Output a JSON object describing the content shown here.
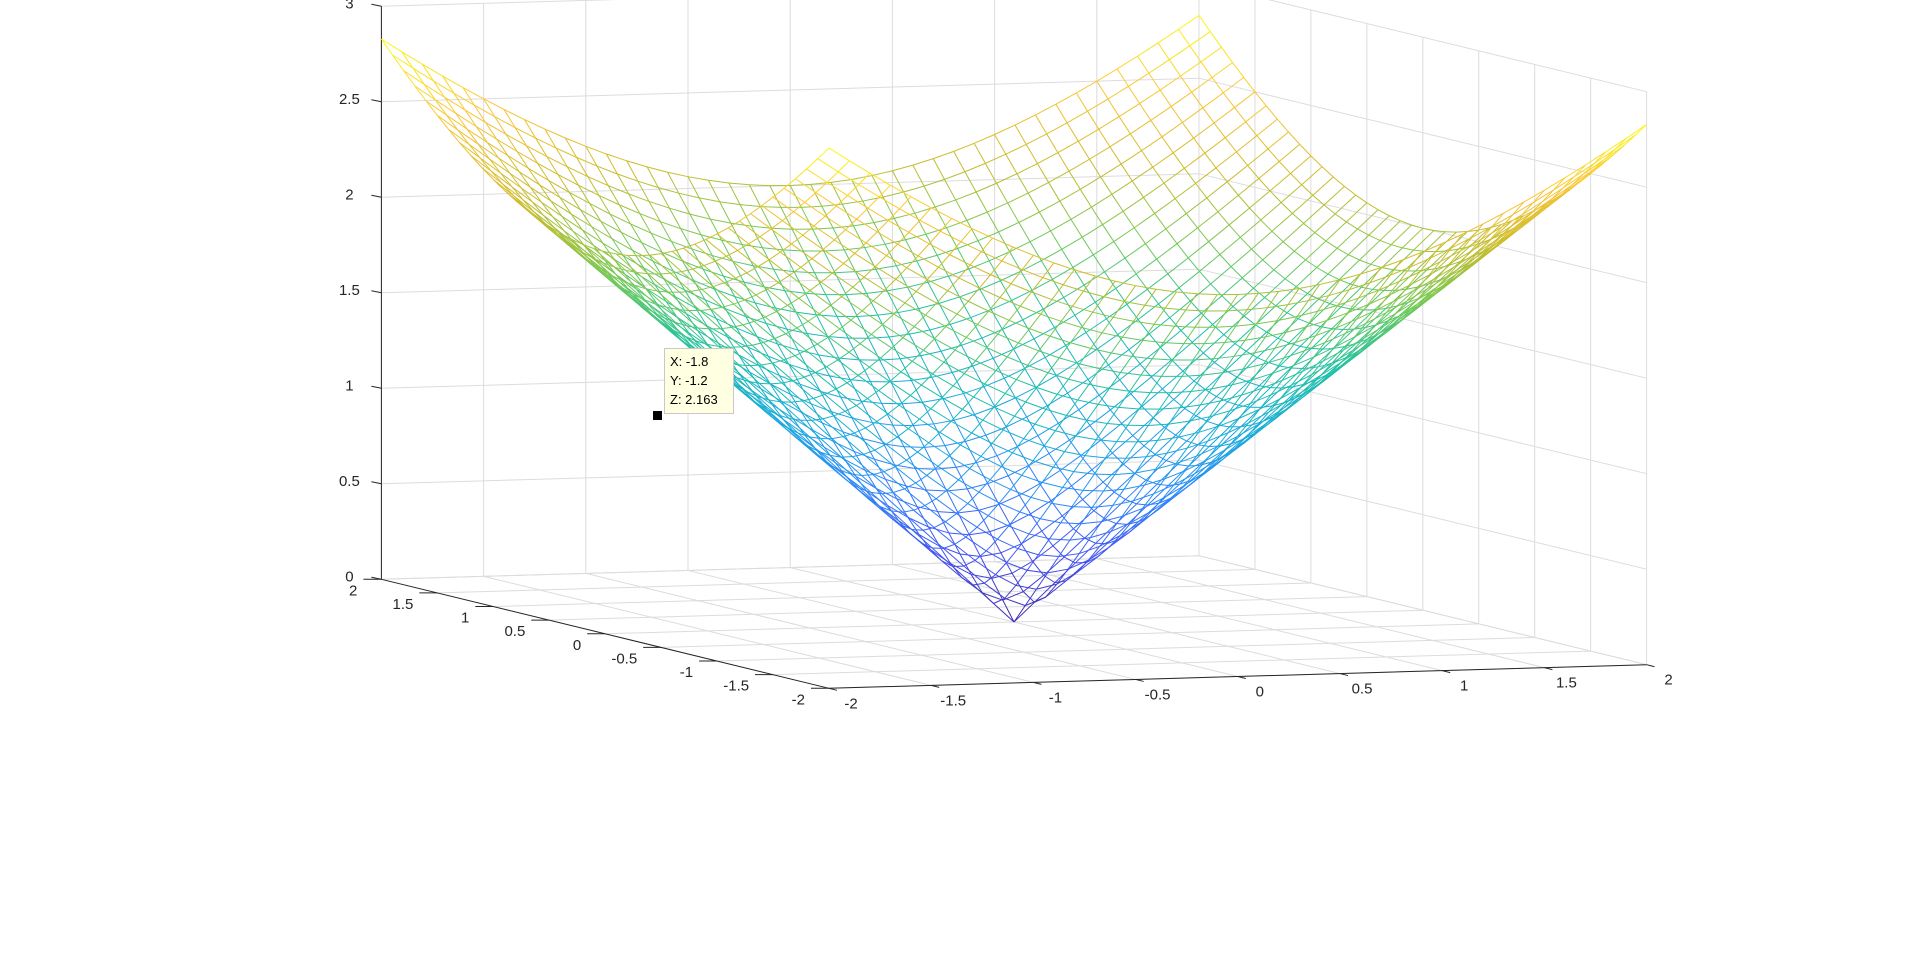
{
  "chart_data": {
    "type": "surface-mesh",
    "title": "",
    "function": "sqrt(x^2 + y^2)",
    "x": [
      -2,
      -1.9,
      -1.8,
      -1.7,
      -1.6,
      -1.5,
      -1.4,
      -1.3,
      -1.2,
      -1.1,
      -1,
      -0.9,
      -0.8,
      -0.7,
      -0.6,
      -0.5,
      -0.4,
      -0.3,
      -0.2,
      -0.1,
      0,
      0.1,
      0.2,
      0.3,
      0.4,
      0.5,
      0.6,
      0.7,
      0.8,
      0.9,
      1,
      1.1,
      1.2,
      1.3,
      1.4,
      1.5,
      1.6,
      1.7,
      1.8,
      1.9,
      2
    ],
    "y": [
      -2,
      -1.9,
      -1.8,
      -1.7,
      -1.6,
      -1.5,
      -1.4,
      -1.3,
      -1.2,
      -1.1,
      -1,
      -0.9,
      -0.8,
      -0.7,
      -0.6,
      -0.5,
      -0.4,
      -0.3,
      -0.2,
      -0.1,
      0,
      0.1,
      0.2,
      0.3,
      0.4,
      0.5,
      0.6,
      0.7,
      0.8,
      0.9,
      1,
      1.1,
      1.2,
      1.3,
      1.4,
      1.5,
      1.6,
      1.7,
      1.8,
      1.9,
      2
    ],
    "xlim": [
      -2,
      2
    ],
    "ylim": [
      -2,
      2
    ],
    "zlim": [
      0,
      3
    ],
    "xticks": [
      -2,
      -1.5,
      -1,
      -0.5,
      0,
      0.5,
      1,
      1.5,
      2
    ],
    "xtick_labels": [
      "-2",
      "-1.5",
      "-1",
      "-0.5",
      "0",
      "0.5",
      "1",
      "1.5",
      "2"
    ],
    "yticks": [
      -2,
      -1.5,
      -1,
      -0.5,
      0,
      0.5,
      1,
      1.5,
      2
    ],
    "ytick_labels": [
      "-2",
      "-1.5",
      "-1",
      "-0.5",
      "0",
      "0.5",
      "1",
      "1.5",
      "2"
    ],
    "zticks": [
      0,
      0.5,
      1,
      1.5,
      2,
      2.5,
      3
    ],
    "ztick_labels": [
      "0",
      "0.5",
      "1",
      "1.5",
      "2",
      "2.5",
      "3"
    ],
    "xlabel": "",
    "ylabel": "",
    "zlabel": "",
    "grid": true,
    "box": false,
    "colormap": "parula",
    "colormap_stops": [
      "#3e26a8",
      "#4352f4",
      "#2c88fc",
      "#18acdb",
      "#1fc1a5",
      "#6fca57",
      "#cdbc2b",
      "#fcc636",
      "#f9fb15"
    ],
    "gridline_color": "#dcdcdc",
    "axis_color": "#262626",
    "datatip": {
      "x": -1.8,
      "y": -1.2,
      "z": 2.163,
      "x_text": "X: -1.8",
      "y_text": "Y: -1.2",
      "z_text": "Z: 2.163"
    }
  }
}
